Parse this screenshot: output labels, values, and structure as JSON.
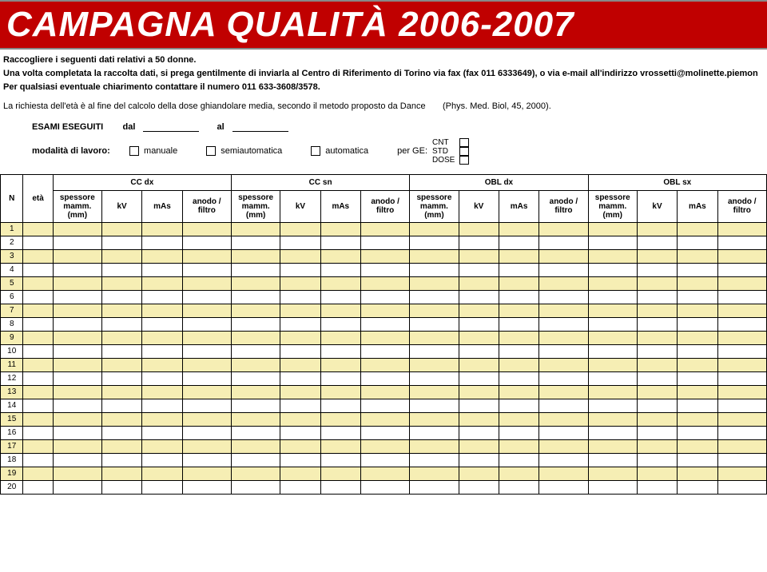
{
  "header": {
    "title": "CAMPAGNA QUALITÀ 2006-2007"
  },
  "intro": {
    "line1": "Raccogliere i seguenti dati relativi a 50 donne.",
    "line2": "Una volta completata la raccolta dati, si prega gentilmente di inviarla al Centro di Riferimento di Torino via fax (fax 011 6333649), o via e-mail all'indirizzo vrossetti@molinette.piemon",
    "line3": "Per qualsiasi eventuale chiarimento contattare il numero 011 633-3608/3578."
  },
  "richiesta": {
    "text": "La richiesta dell'età è al fine del calcolo della dose ghiandolare media, secondo il metodo proposto da Dance",
    "cite": "(Phys. Med. Biol, 45, 2000)."
  },
  "form": {
    "esami_label": "ESAMI ESEGUITI",
    "dal": "dal",
    "al": "al",
    "modalita_label": "modalità di lavoro:",
    "manuale": "manuale",
    "semi": "semiautomatica",
    "auto": "automatica",
    "per_ge": "per GE:",
    "ge_opts": {
      "cnt": "CNT",
      "std": "STD",
      "dose": "DOSE"
    }
  },
  "table": {
    "groups": {
      "ccdx": "CC dx",
      "ccsn": "CC sn",
      "obldx": "OBL dx",
      "oblsx": "OBL sx"
    },
    "cols": {
      "n": "N",
      "eta": "età",
      "spessore": "spessore mamm. (mm)",
      "kv": "kV",
      "mas": "mAs",
      "anodo": "anodo / filtro"
    },
    "row_count": 20,
    "odd_bg": "#f6eeb4",
    "even_bg": "#ffffff",
    "border_color": "#000000"
  }
}
